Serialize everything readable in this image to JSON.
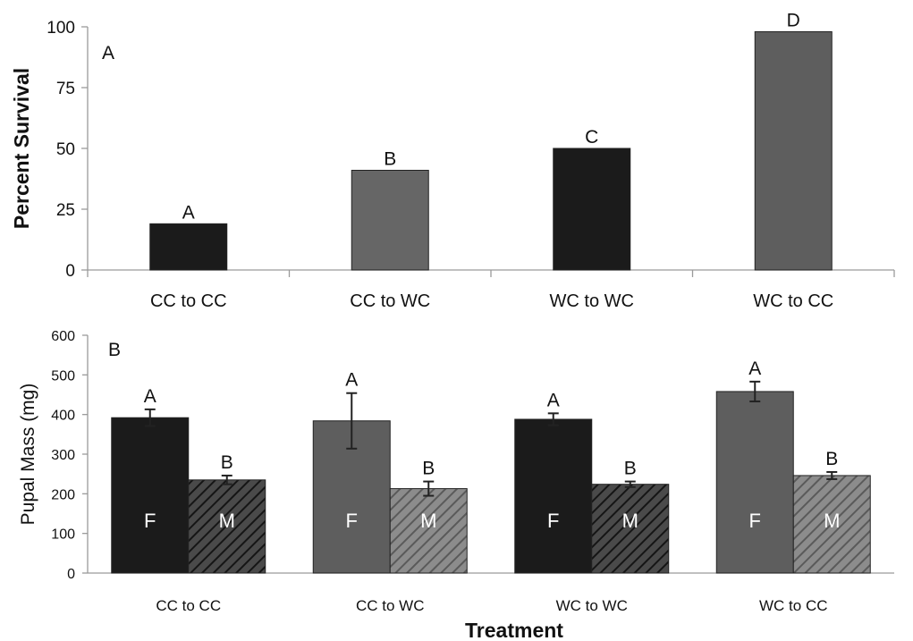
{
  "figure": {
    "shared_xlabel": "Treatment"
  },
  "chart_data": [
    {
      "panel_label": "A",
      "type": "bar",
      "title": "",
      "xlabel": "",
      "ylabel": "Percent Survival",
      "ylim": [
        0,
        100
      ],
      "yticks": [
        0,
        25,
        50,
        75,
        100
      ],
      "grid": false,
      "legend": "none",
      "categories": [
        "CC to CC",
        "CC to WC",
        "WC to WC",
        "WC to CC"
      ],
      "values": [
        19,
        41,
        50,
        98
      ],
      "letters": [
        "A",
        "B",
        "C",
        "D"
      ],
      "colors": [
        "#1b1b1b",
        "#666666",
        "#1b1b1b",
        "#5e5e5e"
      ]
    },
    {
      "panel_label": "B",
      "type": "bar",
      "title": "",
      "xlabel": "Treatment",
      "ylabel": "Pupal Mass (mg)",
      "ylim": [
        0,
        600
      ],
      "yticks": [
        0,
        100,
        200,
        300,
        400,
        500,
        600
      ],
      "grid": false,
      "legend": "none",
      "categories": [
        "CC to CC",
        "CC to WC",
        "WC to WC",
        "WC to CC"
      ],
      "series": [
        {
          "bar_text": "F",
          "values": [
            392,
            384,
            388,
            458
          ],
          "errors": [
            21,
            70,
            15,
            25
          ],
          "letters": [
            "A",
            "A",
            "A",
            "A"
          ],
          "colors": [
            "#1b1b1b",
            "#5e5e5e",
            "#1b1b1b",
            "#5e5e5e"
          ],
          "pattern": "solid"
        },
        {
          "bar_text": "M",
          "values": [
            235,
            213,
            224,
            246
          ],
          "errors": [
            11,
            18,
            7,
            9
          ],
          "letters": [
            "B",
            "B",
            "B",
            "B"
          ],
          "colors": [
            "#1b1b1b",
            "#5e5e5e",
            "#1b1b1b",
            "#5e5e5e"
          ],
          "pattern": "hatched"
        }
      ]
    }
  ]
}
